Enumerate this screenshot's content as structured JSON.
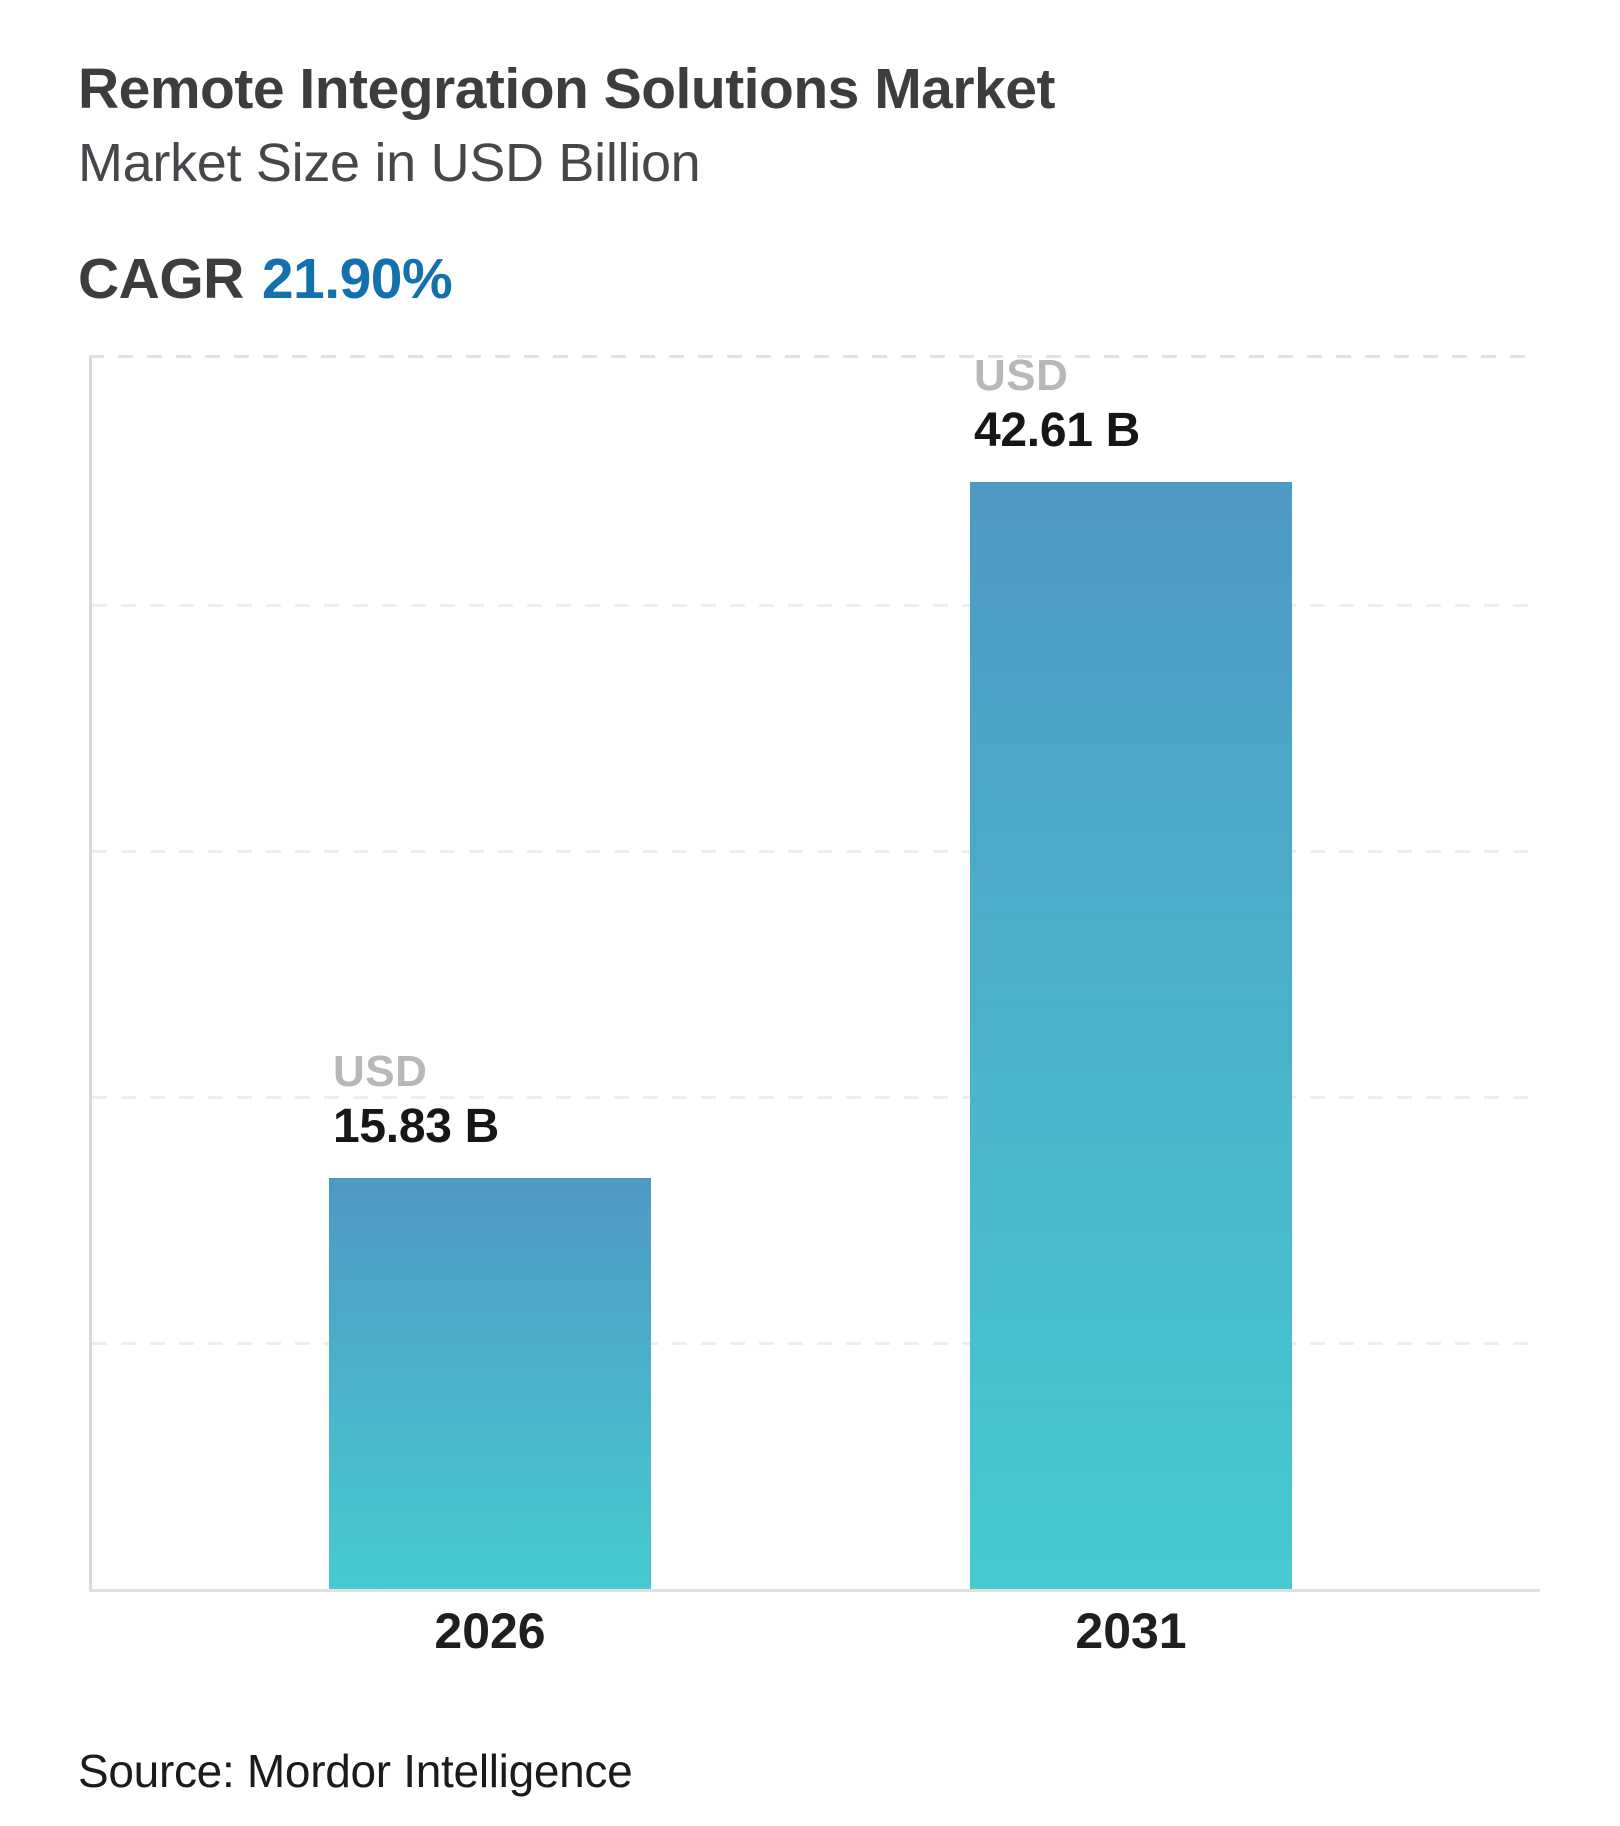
{
  "header": {
    "title": "Remote Integration Solutions Market",
    "subtitle": "Market Size in USD Billion",
    "cagr_label": "CAGR",
    "cagr_value": "21.90%"
  },
  "chart_data": {
    "type": "bar",
    "title": "Remote Integration Solutions Market",
    "subtitle": "Market Size in USD Billion",
    "unit": "USD Billion",
    "categories": [
      "2026",
      "2031"
    ],
    "values": [
      15.83,
      42.61
    ],
    "bars": [
      {
        "category": "2026",
        "currency_label": "USD",
        "value": 15.83,
        "value_label": "15.83 B"
      },
      {
        "category": "2031",
        "currency_label": "USD",
        "value": 42.61,
        "value_label": "42.61 B"
      }
    ],
    "ylim": [
      0,
      47.5
    ],
    "xlabel": "",
    "ylabel": "",
    "grid": true,
    "grid_style": "dashed horizontal",
    "legend": "none",
    "bar_gradient_top": "#4f99c5",
    "bar_gradient_bottom": "#46cbcf"
  },
  "source": {
    "text": "Source: Mordor Intelligence"
  },
  "colors": {
    "accent_blue": "#1371ad",
    "title_text": "#3d3d40",
    "usd_label_gray": "#b8b8ba",
    "value_text": "#161616",
    "axis_line": "#d9d9d9",
    "gridline": "#eeeeee"
  }
}
